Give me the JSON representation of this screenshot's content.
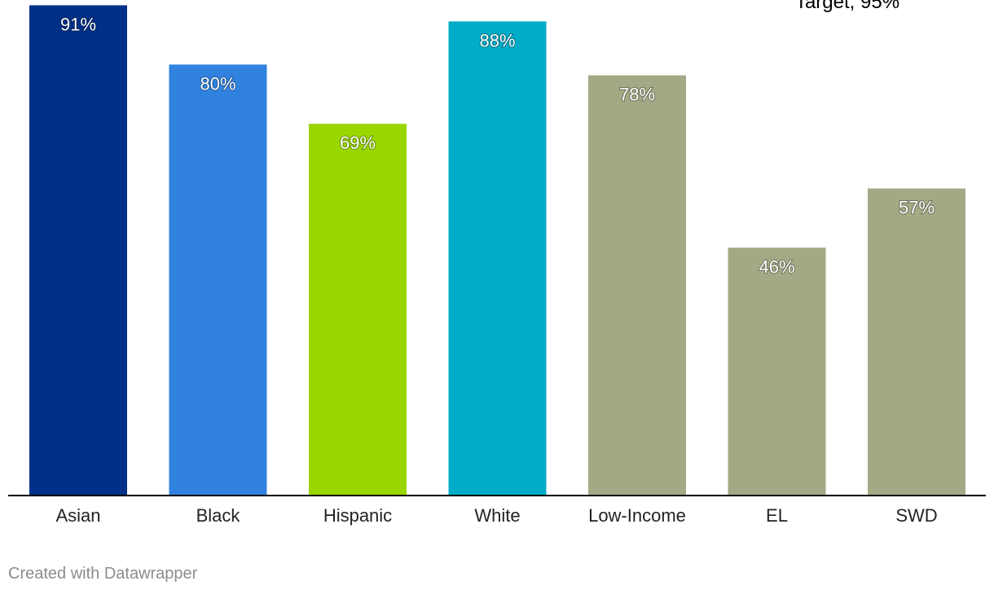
{
  "chart_data": {
    "type": "bar",
    "categories": [
      "Asian",
      "Black",
      "Hispanic",
      "White",
      "Low-Income",
      "EL",
      "SWD"
    ],
    "values": [
      91,
      80,
      69,
      88,
      78,
      46,
      57
    ],
    "value_labels": [
      "91%",
      "80%",
      "69%",
      "88%",
      "78%",
      "46%",
      "57%"
    ],
    "bar_colors": [
      "#003087",
      "#3182df",
      "#99d600",
      "#00acc7",
      "#a3a984",
      "#a3a984",
      "#a3a984"
    ],
    "target_label": "Target, 95%",
    "target_value": 95,
    "ylim": [
      0,
      95
    ],
    "axis_color": "#000000"
  },
  "footer": {
    "credit": "Created with Datawrapper"
  }
}
